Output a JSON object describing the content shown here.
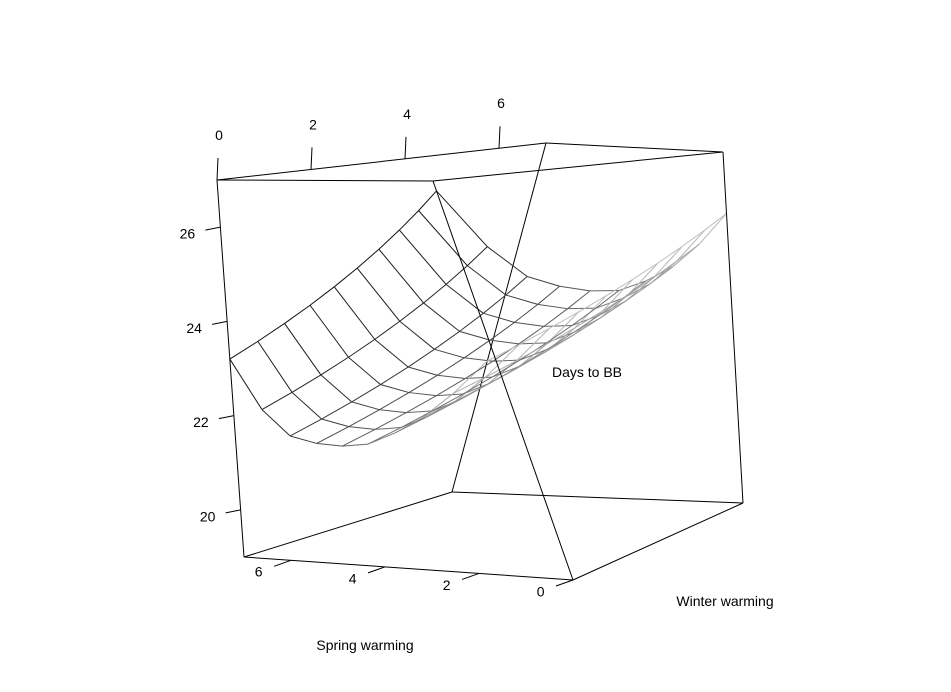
{
  "chart_data": {
    "type": "surface",
    "title": "",
    "axis_labels": {
      "x": "Spring warming",
      "y": "Winter warming",
      "z": "Days to BB"
    },
    "x_ticks": [
      "0",
      "2",
      "4",
      "6"
    ],
    "y_ticks": [
      "0",
      "2",
      "4",
      "6"
    ],
    "z_ticks": [
      "20",
      "22",
      "24",
      "26"
    ],
    "x": [
      0,
      0.777,
      1.555,
      2.333,
      3.111,
      3.888,
      4.666,
      5.444,
      6.222,
      7.0
    ],
    "y": [
      0,
      0.777,
      1.555,
      2.333,
      3.111,
      3.888,
      4.666,
      5.444,
      6.222,
      7.0
    ],
    "xlim": [
      0,
      7
    ],
    "ylim": [
      0,
      7
    ],
    "zlim": [
      19,
      27
    ],
    "z_model": {
      "description": "Days to BB surface; rows correspond to Spring warming values, columns to Winter warming values",
      "z": [
        [
          26.8,
          25.6,
          24.9,
          24.6,
          24.4,
          24.3,
          24.4,
          24.6,
          25.0,
          25.6
        ],
        [
          26.4,
          25.2,
          24.5,
          24.2,
          24.0,
          23.9,
          24.0,
          24.2,
          24.6,
          25.2
        ],
        [
          26.0,
          24.8,
          24.1,
          23.8,
          23.6,
          23.5,
          23.6,
          23.8,
          24.2,
          24.8
        ],
        [
          25.6,
          24.4,
          23.7,
          23.4,
          23.2,
          23.1,
          23.2,
          23.4,
          23.8,
          24.4
        ],
        [
          25.2,
          24.0,
          23.3,
          23.0,
          22.8,
          22.7,
          22.8,
          23.0,
          23.4,
          24.0
        ],
        [
          24.8,
          23.6,
          22.9,
          22.6,
          22.4,
          22.3,
          22.4,
          22.6,
          23.0,
          23.6
        ],
        [
          24.4,
          23.2,
          22.5,
          22.2,
          22.0,
          21.9,
          22.0,
          22.2,
          22.6,
          23.2
        ],
        [
          24.0,
          22.8,
          22.1,
          21.8,
          21.6,
          21.5,
          21.6,
          21.8,
          22.2,
          22.8
        ],
        [
          23.6,
          22.4,
          21.7,
          21.4,
          21.2,
          21.1,
          21.2,
          21.4,
          21.8,
          22.4
        ],
        [
          23.2,
          22.0,
          21.3,
          21.0,
          20.8,
          20.7,
          20.8,
          21.0,
          21.4,
          22.0
        ]
      ]
    },
    "colors": {
      "box": "#000000",
      "mesh_near": "#111111",
      "mesh_far": "#bfbfbf"
    }
  }
}
